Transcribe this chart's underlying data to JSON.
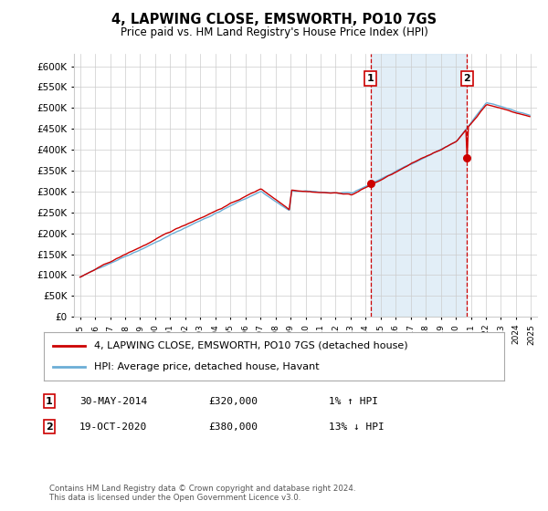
{
  "title": "4, LAPWING CLOSE, EMSWORTH, PO10 7GS",
  "subtitle": "Price paid vs. HM Land Registry's House Price Index (HPI)",
  "legend_line1": "4, LAPWING CLOSE, EMSWORTH, PO10 7GS (detached house)",
  "legend_line2": "HPI: Average price, detached house, Havant",
  "annotation1_date": "30-MAY-2014",
  "annotation1_price": 320000,
  "annotation1_hpi": "1% ↑ HPI",
  "annotation2_date": "19-OCT-2020",
  "annotation2_price": 380000,
  "annotation2_hpi": "13% ↓ HPI",
  "footer": "Contains HM Land Registry data © Crown copyright and database right 2024.\nThis data is licensed under the Open Government Licence v3.0.",
  "hpi_color": "#6baed6",
  "hpi_fill_color": "#d6e8f5",
  "price_color": "#cc0000",
  "annotation_color": "#cc0000",
  "dot_color": "#cc0000",
  "ylim": [
    0,
    620000
  ],
  "yticks": [
    0,
    50000,
    100000,
    150000,
    200000,
    250000,
    300000,
    350000,
    400000,
    450000,
    500000,
    550000,
    600000
  ],
  "t1_year": 2014.4,
  "t2_year": 2020.8,
  "t1_price": 320000,
  "t2_price": 380000,
  "bg_color": "#ffffff",
  "grid_color": "#cccccc"
}
